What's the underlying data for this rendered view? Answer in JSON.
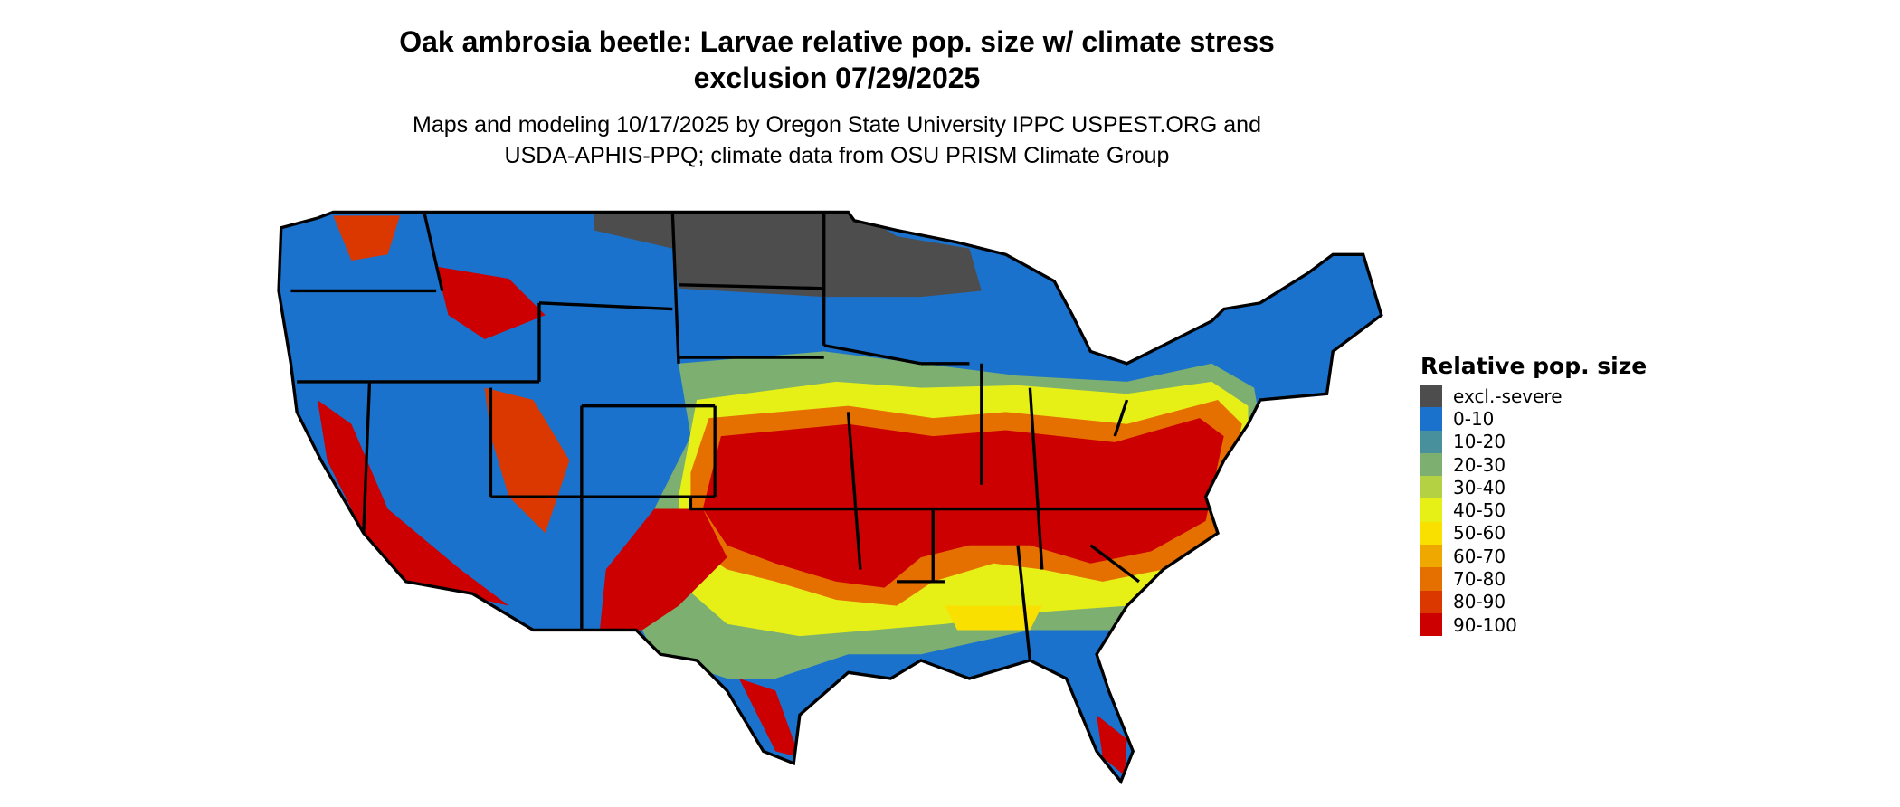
{
  "title": {
    "line1": "Oak ambrosia beetle: Larvae relative pop. size w/ climate stress",
    "line2": "exclusion 07/29/2025"
  },
  "subtitle": {
    "line1": "Maps and modeling 10/17/2025 by Oregon State University IPPC USPEST.ORG and",
    "line2": "USDA-APHIS-PPQ; climate data from OSU PRISM Climate Group"
  },
  "legend": {
    "title": "Relative pop. size",
    "items": [
      {
        "label": "excl.-severe",
        "color": "#4d4d4d"
      },
      {
        "label": "0-10",
        "color": "#1a72cc"
      },
      {
        "label": "10-20",
        "color": "#48909c"
      },
      {
        "label": "20-30",
        "color": "#7db070"
      },
      {
        "label": "30-40",
        "color": "#b3d143"
      },
      {
        "label": "40-50",
        "color": "#e6f016"
      },
      {
        "label": "50-60",
        "color": "#f9e000"
      },
      {
        "label": "60-70",
        "color": "#efa800"
      },
      {
        "label": "70-80",
        "color": "#e57000"
      },
      {
        "label": "80-90",
        "color": "#db3800"
      },
      {
        "label": "90-100",
        "color": "#cc0000"
      }
    ]
  }
}
